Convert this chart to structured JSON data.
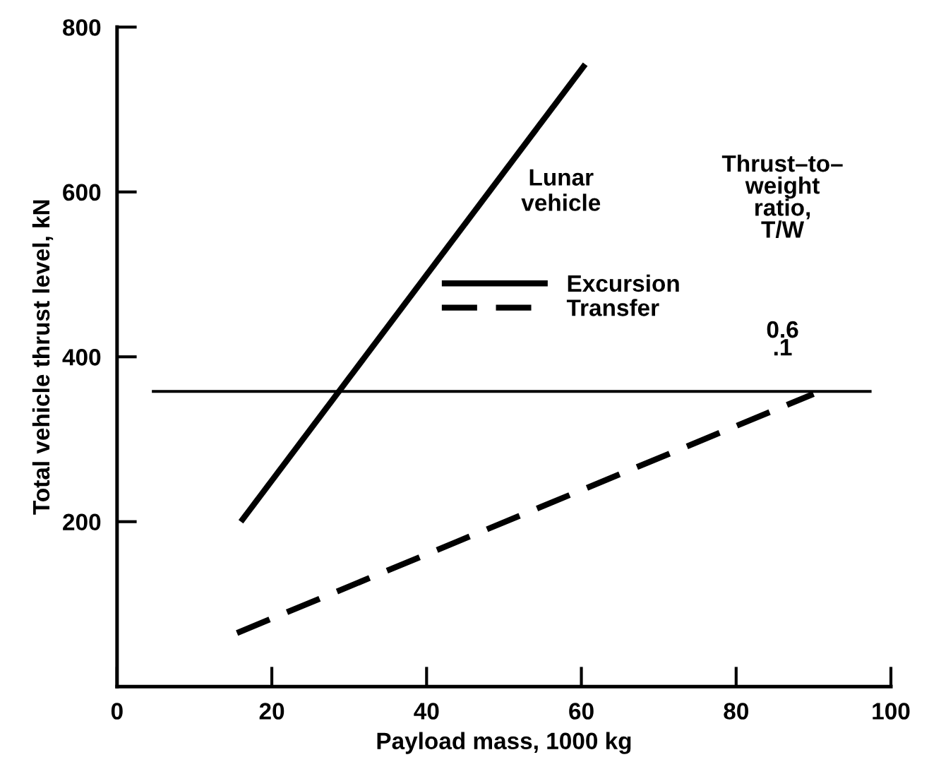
{
  "chart_data": {
    "type": "line",
    "xlabel": "Payload mass, 1000 kg",
    "ylabel": "Total vehicle thrust level, kN",
    "legend_title": "Lunar\nvehicle",
    "series": [
      {
        "name": "Excursion",
        "color": "#000000",
        "x": [
          16,
          60.5
        ],
        "values": [
          200,
          755
        ],
        "line_style": "solid"
      },
      {
        "name": "Transfer",
        "color": "#000000",
        "x": [
          15.5,
          90
        ],
        "values": [
          65,
          355
        ],
        "line_style": "dashed"
      },
      {
        "color": "#000000",
        "x": [
          4.5,
          97.5
        ],
        "values": [
          358,
          358
        ],
        "line_style": "solid"
      }
    ],
    "annotations": [
      "Thrust–to–\nweight\nratio,\nT/W",
      "0.6",
      ".1"
    ],
    "xlim": [
      0,
      100
    ],
    "xticks": [
      0,
      20,
      40,
      60,
      80,
      100
    ],
    "ylim": [
      0,
      800
    ],
    "yticks": [
      200,
      400,
      600,
      800
    ],
    "legend": "top right",
    "grid": false
  }
}
